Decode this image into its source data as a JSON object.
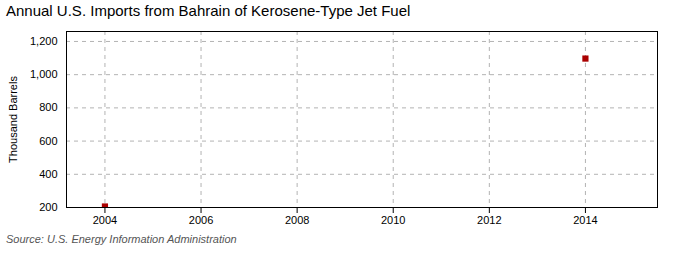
{
  "chart_data": {
    "type": "scatter",
    "title": "Annual U.S. Imports from Bahrain of Kerosene-Type Jet Fuel",
    "ylabel": "Thousand Barrels",
    "source": "Source: U.S. Energy Information Administration",
    "x": [
      2004,
      2014
    ],
    "values": [
      206,
      1097
    ],
    "color": "#aa0000",
    "marker": "square",
    "xlim": [
      2003.2,
      2015.5
    ],
    "xticks": [
      2004,
      2006,
      2008,
      2010,
      2012,
      2014
    ],
    "ylim": [
      200,
      1260
    ],
    "yticks": [
      200,
      400,
      600,
      800,
      {
        "value": 1000,
        "label": "1,000"
      },
      {
        "value": 1200,
        "label": "1,200"
      }
    ],
    "grid": true
  }
}
